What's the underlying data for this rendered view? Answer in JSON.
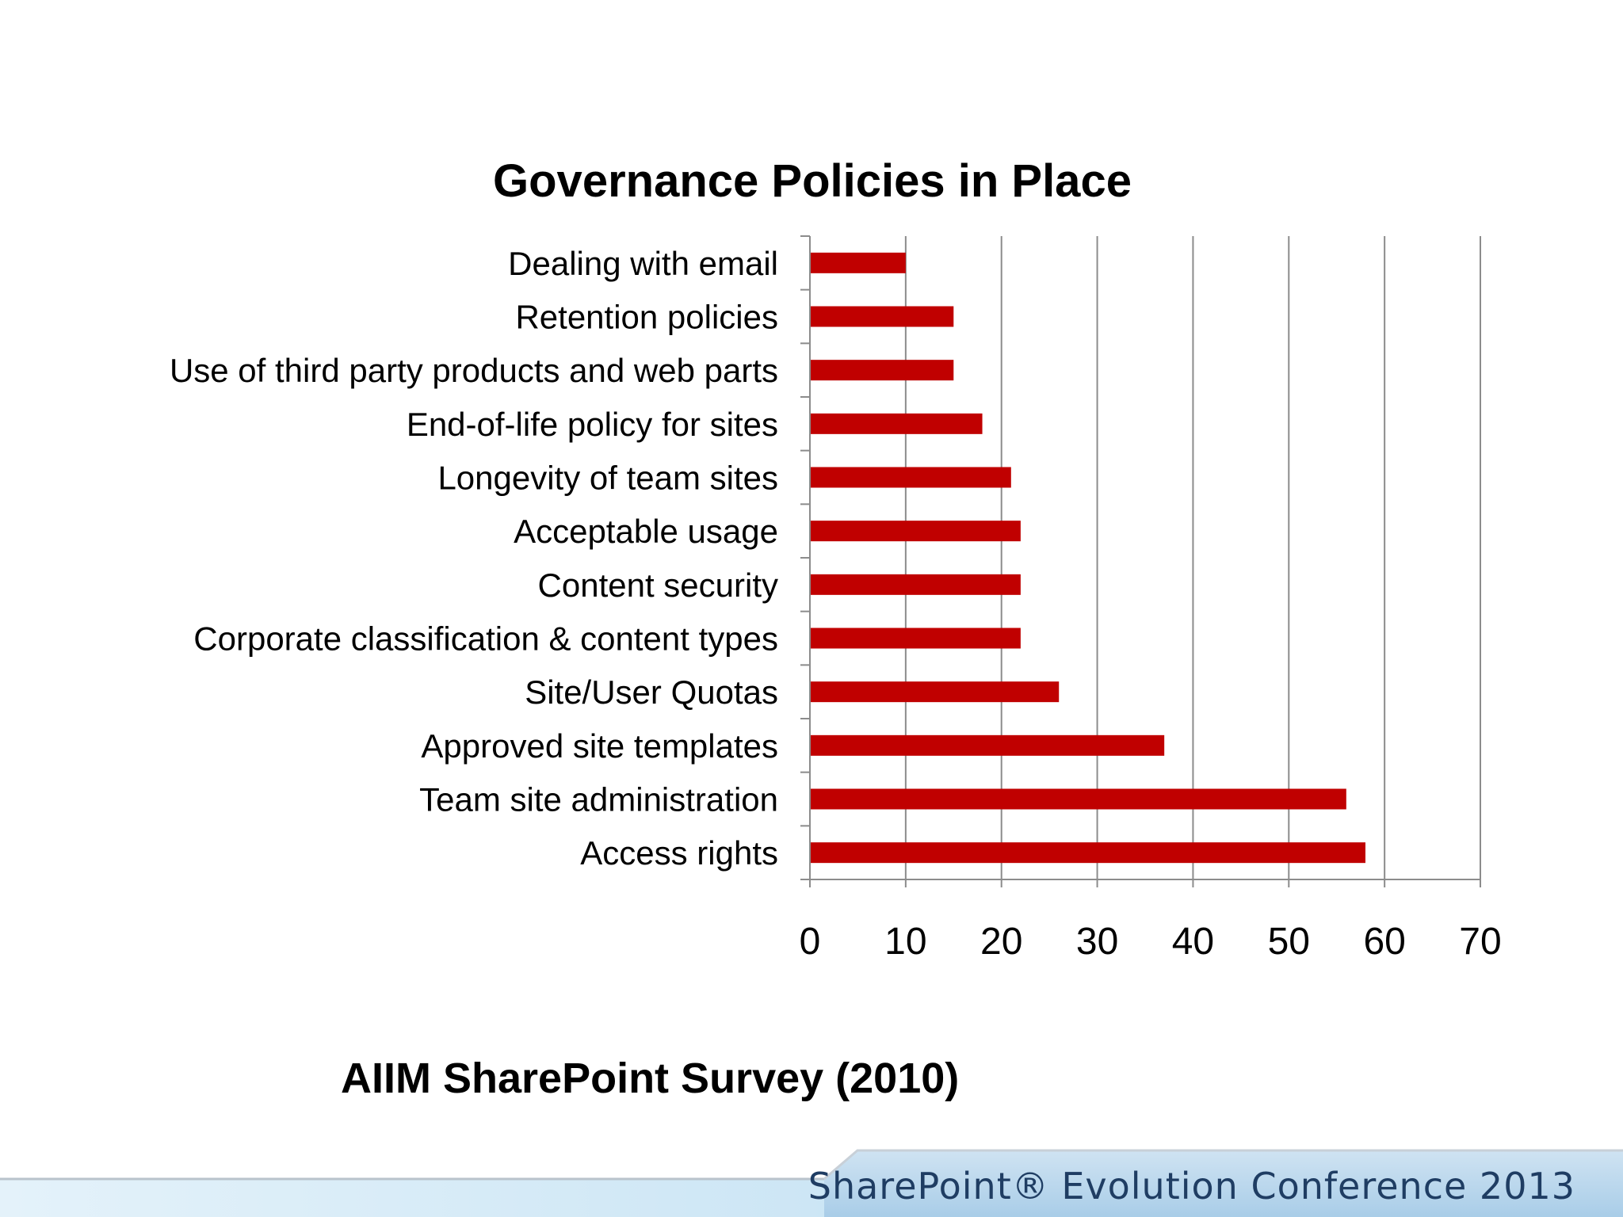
{
  "chart_data": {
    "type": "bar",
    "orientation": "horizontal",
    "title": "Governance Policies in Place",
    "categories": [
      "Dealing with email",
      "Retention policies",
      "Use of third party products and web parts",
      "End-of-life policy for sites",
      "Longevity of team sites",
      "Acceptable usage",
      "Content security",
      "Corporate classification & content types",
      "Site/User Quotas",
      "Approved site templates",
      "Team site administration",
      "Access rights"
    ],
    "values": [
      10,
      15,
      15,
      18,
      21,
      22,
      22,
      22,
      26,
      37,
      56,
      58
    ],
    "xlim": [
      0,
      70
    ],
    "xticks": [
      "0",
      "10",
      "20",
      "30",
      "40",
      "50",
      "60",
      "70"
    ],
    "xlabel": "",
    "ylabel": "",
    "grid": true,
    "bar_color": "#c00000"
  },
  "caption": "AIIM SharePoint Survey (2010)",
  "footer": {
    "text": "SharePoint® Evolution Conference 2013",
    "text_color": "#1f3d63"
  }
}
